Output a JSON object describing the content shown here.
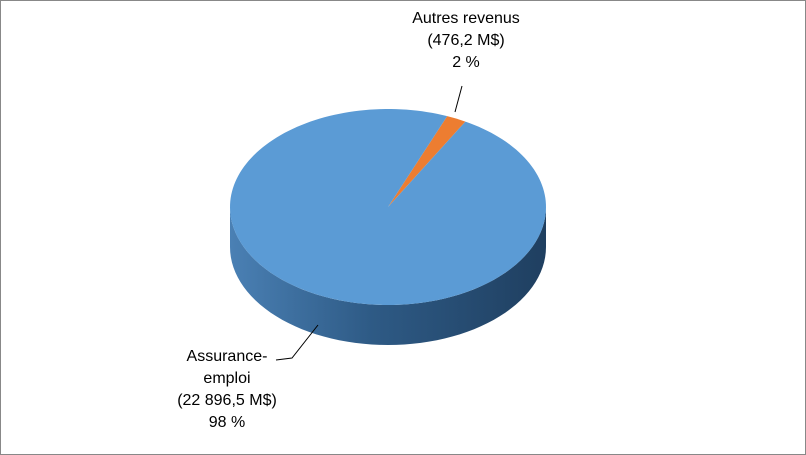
{
  "chart_data": {
    "type": "pie",
    "categories": [
      "Autres revenus",
      "Assurance-emploi"
    ],
    "values": [
      476.2,
      22896.5
    ],
    "value_labels": [
      "(476,2 M$)",
      "(22 896,5 M$)"
    ],
    "percents": [
      2,
      98
    ],
    "percent_labels": [
      "2 %",
      "98 %"
    ],
    "colors": [
      "#ed7d31",
      "#5b9bd5"
    ],
    "side_color": "#2e5a85"
  }
}
